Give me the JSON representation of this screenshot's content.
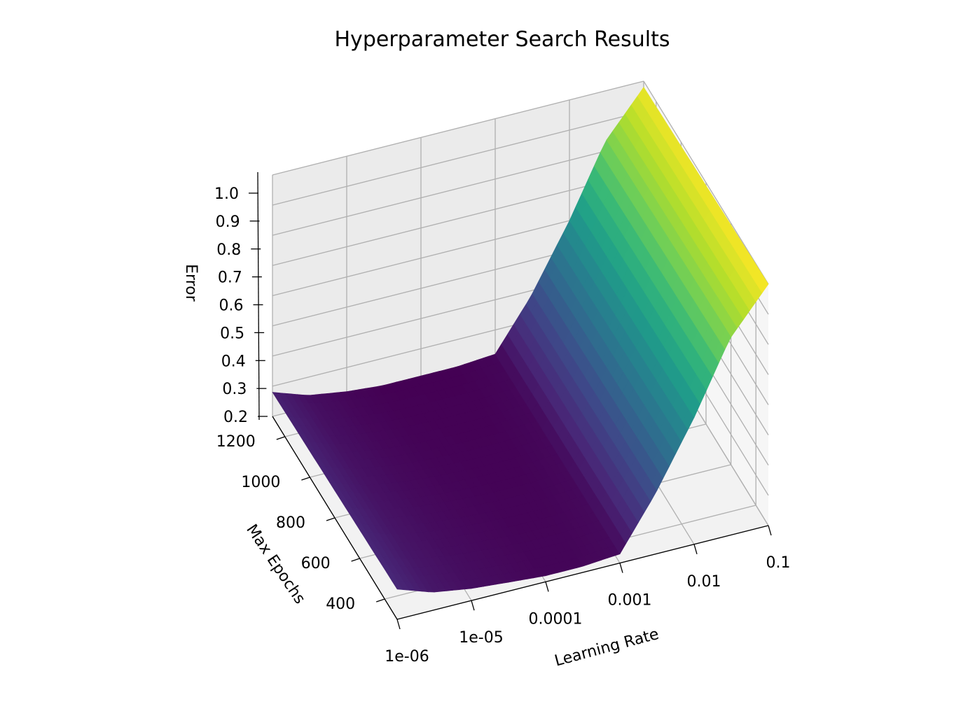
{
  "chart_data": {
    "type": "surface",
    "title": "Hyperparameter Search Results",
    "xlabel": "Learning Rate",
    "ylabel": "Max Epochs",
    "zlabel": "Error",
    "x_scale": "log",
    "x_ticks": [
      "1e-06",
      "1e-05",
      "0.0001",
      "0.001",
      "0.01",
      "0.1"
    ],
    "y_ticks": [
      "400",
      "600",
      "800",
      "1000",
      "1200"
    ],
    "z_ticks": [
      "0.2",
      "0.3",
      "0.4",
      "0.5",
      "0.6",
      "0.7",
      "0.8",
      "0.9",
      "1.0"
    ],
    "x_range": [
      1e-06,
      0.1
    ],
    "y_range": [
      300,
      1300
    ],
    "z_range": [
      0.2,
      1.0
    ],
    "colormap": "viridis",
    "grid": true,
    "profile": {
      "learning_rate": [
        "1e-06",
        "3e-06",
        "1e-05",
        "3e-05",
        "0.0001",
        "0.0003",
        "0.001",
        "0.003",
        "0.01",
        "0.03",
        "0.1"
      ],
      "error_at_300_epochs": [
        0.3,
        0.26,
        0.24,
        0.23,
        0.22,
        0.22,
        0.23,
        0.4,
        0.62,
        0.85,
        1.0
      ],
      "error_at_1300_epochs": [
        0.28,
        0.24,
        0.22,
        0.21,
        0.21,
        0.21,
        0.22,
        0.38,
        0.6,
        0.83,
        0.98
      ]
    }
  }
}
